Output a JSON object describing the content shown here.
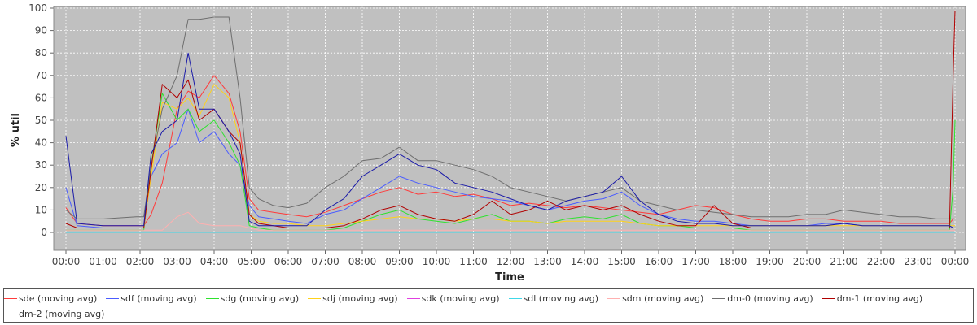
{
  "chart_data": {
    "type": "line",
    "xlabel": "Time",
    "ylabel": "% util",
    "ylim": [
      0,
      100
    ],
    "y_ticks": [
      "0",
      "10",
      "20",
      "30",
      "40",
      "50",
      "60",
      "70",
      "80",
      "90",
      "100"
    ],
    "x_ticks": [
      "00:00",
      "01:00",
      "02:00",
      "03:00",
      "04:00",
      "05:00",
      "06:00",
      "07:00",
      "08:00",
      "09:00",
      "10:00",
      "11:00",
      "12:00",
      "13:00",
      "14:00",
      "15:00",
      "16:00",
      "17:00",
      "18:00",
      "19:00",
      "20:00",
      "21:00",
      "22:00",
      "23:00",
      "00:00"
    ],
    "grid": true,
    "legend_position": "bottom",
    "colors": {
      "plot_background": "#c0c0c0",
      "gridline": "#ffffff"
    },
    "x_hours": [
      0,
      0.3,
      1,
      1.9,
      2.1,
      2.3,
      2.6,
      3.0,
      3.3,
      3.6,
      4.0,
      4.4,
      4.7,
      4.95,
      5.2,
      5.6,
      6.0,
      6.5,
      7.0,
      7.5,
      8.0,
      8.5,
      9.0,
      9.5,
      10.0,
      10.5,
      11.0,
      11.5,
      12.0,
      12.5,
      13.0,
      13.5,
      14.0,
      14.5,
      15.0,
      15.5,
      16.0,
      16.5,
      17.0,
      17.5,
      18.0,
      18.5,
      19.0,
      19.5,
      20.0,
      20.5,
      21.0,
      21.5,
      22.0,
      22.5,
      23.0,
      23.5,
      23.85,
      23.95,
      24.0
    ],
    "series": [
      {
        "name": "sde (moving avg)",
        "color": "#ff3b3b",
        "values": [
          11,
          4,
          3,
          3,
          3,
          8,
          22,
          55,
          63,
          60,
          70,
          62,
          45,
          15,
          10,
          9,
          8,
          7,
          9,
          12,
          15,
          18,
          20,
          17,
          18,
          16,
          17,
          15,
          12,
          13,
          12,
          11,
          12,
          11,
          10,
          9,
          8,
          10,
          12,
          11,
          8,
          6,
          5,
          5,
          6,
          6,
          5,
          5,
          5,
          4,
          4,
          4,
          4,
          6,
          6
        ]
      },
      {
        "name": "sdf (moving avg)",
        "color": "#4a5cff",
        "values": [
          20,
          3,
          2,
          2,
          2,
          25,
          35,
          40,
          55,
          40,
          45,
          35,
          30,
          12,
          7,
          6,
          5,
          4,
          8,
          10,
          15,
          20,
          25,
          22,
          20,
          18,
          16,
          15,
          14,
          12,
          10,
          12,
          14,
          15,
          18,
          12,
          8,
          6,
          5,
          5,
          4,
          3,
          3,
          3,
          3,
          4,
          4,
          3,
          3,
          3,
          3,
          3,
          3,
          2,
          2
        ]
      },
      {
        "name": "sdg (moving avg)",
        "color": "#2ee22e",
        "values": [
          1,
          1,
          1,
          1,
          1,
          30,
          62,
          50,
          55,
          45,
          50,
          40,
          30,
          3,
          2,
          1,
          1,
          1,
          1,
          2,
          5,
          8,
          10,
          6,
          5,
          4,
          6,
          8,
          5,
          5,
          4,
          6,
          7,
          6,
          8,
          4,
          3,
          3,
          2,
          2,
          2,
          1,
          1,
          1,
          1,
          1,
          1,
          1,
          1,
          1,
          1,
          1,
          1,
          20,
          50
        ]
      },
      {
        "name": "sdj (moving avg)",
        "color": "#ffd21a",
        "values": [
          2,
          2,
          2,
          2,
          2,
          25,
          58,
          55,
          60,
          52,
          66,
          60,
          40,
          8,
          5,
          4,
          4,
          3,
          3,
          4,
          5,
          6,
          7,
          6,
          6,
          5,
          6,
          6,
          5,
          5,
          4,
          5,
          5,
          5,
          5,
          4,
          3,
          3,
          3,
          3,
          3,
          3,
          3,
          3,
          3,
          3,
          3,
          3,
          3,
          3,
          3,
          3,
          3,
          3,
          3
        ]
      },
      {
        "name": "sdk (moving avg)",
        "color": "#e040e0",
        "values": [
          0,
          0,
          0,
          0,
          0,
          0,
          0,
          0,
          0,
          0,
          0,
          0,
          0,
          0,
          0,
          0,
          0,
          0,
          0,
          0,
          0,
          0,
          0,
          0,
          0,
          0,
          0,
          0,
          0,
          0,
          0,
          0,
          0,
          0,
          0,
          0,
          0,
          0,
          0,
          0,
          0,
          0,
          0,
          0,
          0,
          0,
          0,
          0,
          0,
          0,
          0,
          0,
          0,
          0,
          0
        ]
      },
      {
        "name": "sdl (moving avg)",
        "color": "#40d8e8",
        "values": [
          0,
          0,
          0,
          0,
          0,
          0,
          0,
          0,
          0,
          0,
          0,
          0,
          0,
          0,
          0,
          0,
          0,
          0,
          0,
          0,
          0,
          0,
          0,
          0,
          0,
          0,
          0,
          0,
          0,
          0,
          0,
          0,
          0,
          0,
          0,
          0,
          0,
          0,
          0,
          0,
          0,
          0,
          0,
          0,
          0,
          0,
          0,
          0,
          0,
          0,
          0,
          0,
          0,
          0,
          0
        ]
      },
      {
        "name": "sdm (moving avg)",
        "color": "#ffb0b0",
        "values": [
          1,
          1,
          1,
          1,
          1,
          1,
          1,
          7,
          9,
          4,
          3,
          3,
          3,
          2,
          1,
          1,
          1,
          1,
          1,
          1,
          1,
          1,
          1,
          1,
          1,
          1,
          1,
          1,
          1,
          1,
          1,
          1,
          1,
          1,
          1,
          1,
          1,
          1,
          1,
          1,
          1,
          1,
          1,
          1,
          1,
          1,
          1,
          1,
          1,
          1,
          1,
          1,
          1,
          1,
          1
        ]
      },
      {
        "name": "dm-0 (moving avg)",
        "color": "#6e6e6e",
        "values": [
          10,
          6,
          6,
          7,
          7,
          30,
          55,
          70,
          95,
          95,
          96,
          96,
          60,
          20,
          15,
          12,
          11,
          13,
          20,
          25,
          32,
          33,
          38,
          32,
          32,
          30,
          28,
          25,
          20,
          18,
          16,
          14,
          16,
          18,
          20,
          14,
          12,
          10,
          10,
          9,
          8,
          7,
          7,
          7,
          8,
          8,
          10,
          9,
          8,
          7,
          7,
          6,
          6,
          6,
          6
        ]
      },
      {
        "name": "dm-1 (moving avg)",
        "color": "#b00000",
        "values": [
          4,
          2,
          2,
          2,
          2,
          28,
          66,
          60,
          68,
          50,
          55,
          45,
          40,
          8,
          4,
          3,
          2,
          2,
          2,
          3,
          6,
          10,
          12,
          8,
          6,
          5,
          8,
          14,
          8,
          10,
          14,
          10,
          12,
          10,
          12,
          8,
          5,
          3,
          3,
          12,
          4,
          2,
          2,
          2,
          2,
          2,
          2,
          2,
          2,
          2,
          2,
          2,
          2,
          70,
          99
        ]
      },
      {
        "name": "dm-2 (moving avg)",
        "color": "#1a1aa8",
        "values": [
          43,
          4,
          3,
          3,
          3,
          35,
          45,
          50,
          80,
          55,
          55,
          45,
          35,
          5,
          3,
          3,
          3,
          3,
          10,
          15,
          25,
          30,
          35,
          30,
          28,
          22,
          20,
          18,
          15,
          12,
          10,
          14,
          16,
          18,
          25,
          14,
          8,
          5,
          4,
          4,
          3,
          3,
          3,
          3,
          3,
          3,
          4,
          3,
          3,
          3,
          3,
          3,
          3,
          2,
          2
        ]
      }
    ]
  }
}
